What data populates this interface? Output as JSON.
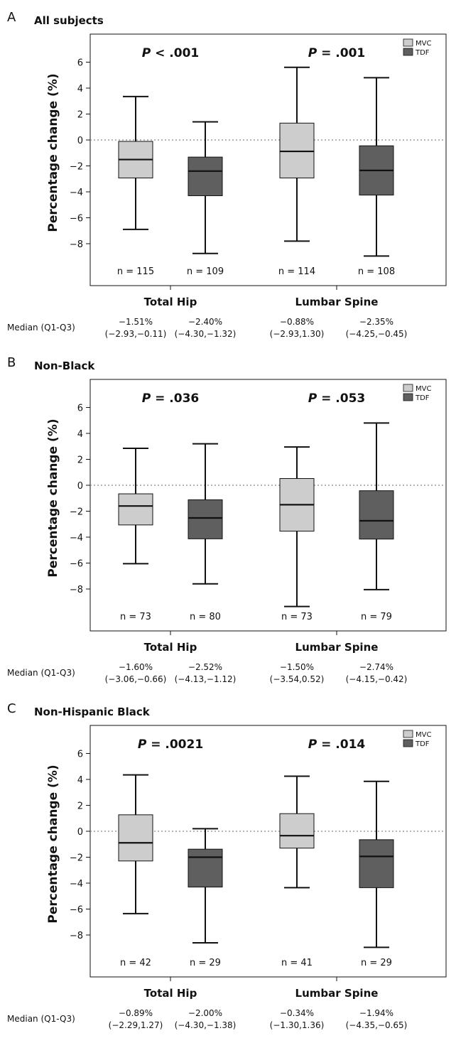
{
  "colors": {
    "MVC": "#cdcdcd",
    "TDF": "#5f5f5f",
    "axis": "#111111",
    "zeroline": "#888888"
  },
  "chart_data": [
    {
      "type": "box",
      "panel_letter": "A",
      "title": "All subjects",
      "ylabel": "Percentage change (%)",
      "ylim": [
        -10.3,
        7.9
      ],
      "yticks": [
        6,
        4,
        2,
        0,
        -2,
        -4,
        -6,
        -8
      ],
      "ytick_labels": [
        "6",
        "4",
        "2",
        "0",
        "−2",
        "−4",
        "−6",
        "−8"
      ],
      "reference_line": 0,
      "legend": [
        "MVC",
        "TDF"
      ],
      "median_row_label": "Median (Q1-Q3)",
      "groups": [
        {
          "name": "Total Hip",
          "p_prefix": "P",
          "p_text": " < .001",
          "boxes": [
            {
              "series": "MVC",
              "min": -6.9,
              "q1": -2.93,
              "median": -1.51,
              "q3": -0.11,
              "max": 3.35,
              "n_label": "n = 115",
              "median_label": "−1.51%",
              "iqr_label": "(−2.93,−0.11)"
            },
            {
              "series": "TDF",
              "min": -8.75,
              "q1": -4.3,
              "median": -2.4,
              "q3": -1.32,
              "max": 1.4,
              "n_label": "n = 109",
              "median_label": "−2.40%",
              "iqr_label": "(−4.30,−1.32)"
            }
          ]
        },
        {
          "name": "Lumbar Spine",
          "p_prefix": "P",
          "p_text": " = .001",
          "boxes": [
            {
              "series": "MVC",
              "min": -7.8,
              "q1": -2.93,
              "median": -0.88,
              "q3": 1.3,
              "max": 5.6,
              "n_label": "n = 114",
              "median_label": "−0.88%",
              "iqr_label": "(−2.93,1.30)"
            },
            {
              "series": "TDF",
              "min": -8.95,
              "q1": -4.25,
              "median": -2.35,
              "q3": -0.45,
              "max": 4.8,
              "n_label": "n = 108",
              "median_label": "−2.35%",
              "iqr_label": "(−4.25,−0.45)"
            }
          ]
        }
      ]
    },
    {
      "type": "box",
      "panel_letter": "B",
      "title": "Non-Black",
      "ylabel": "Percentage change (%)",
      "ylim": [
        -10.3,
        7.9
      ],
      "yticks": [
        6,
        4,
        2,
        0,
        -2,
        -4,
        -6,
        -8
      ],
      "ytick_labels": [
        "6",
        "4",
        "2",
        "0",
        "−2",
        "−4",
        "−6",
        "−8"
      ],
      "reference_line": 0,
      "legend": [
        "MVC",
        "TDF"
      ],
      "median_row_label": "Median (Q1-Q3)",
      "groups": [
        {
          "name": "Total Hip",
          "p_prefix": "P",
          "p_text": " = .036",
          "boxes": [
            {
              "series": "MVC",
              "min": -6.05,
              "q1": -3.06,
              "median": -1.6,
              "q3": -0.66,
              "max": 2.85,
              "n_label": "n = 73",
              "median_label": "−1.60%",
              "iqr_label": "(−3.06,−0.66)"
            },
            {
              "series": "TDF",
              "min": -7.6,
              "q1": -4.13,
              "median": -2.52,
              "q3": -1.12,
              "max": 3.2,
              "n_label": "n = 80",
              "median_label": "−2.52%",
              "iqr_label": "(−4.13,−1.12)"
            }
          ]
        },
        {
          "name": "Lumbar Spine",
          "p_prefix": "P",
          "p_text": " = .053",
          "boxes": [
            {
              "series": "MVC",
              "min": -9.35,
              "q1": -3.54,
              "median": -1.5,
              "q3": 0.52,
              "max": 2.95,
              "n_label": "n = 73",
              "median_label": "−1.50%",
              "iqr_label": "(−3.54,0.52)"
            },
            {
              "series": "TDF",
              "min": -8.05,
              "q1": -4.15,
              "median": -2.74,
              "q3": -0.42,
              "max": 4.8,
              "n_label": "n = 79",
              "median_label": "−2.74%",
              "iqr_label": "(−4.15,−0.42)"
            }
          ]
        }
      ]
    },
    {
      "type": "box",
      "panel_letter": "C",
      "title": "Non-Hispanic Black",
      "ylabel": "Percentage change (%)",
      "ylim": [
        -10.3,
        7.9
      ],
      "yticks": [
        6,
        4,
        2,
        0,
        -2,
        -4,
        -6,
        -8
      ],
      "ytick_labels": [
        "6",
        "4",
        "2",
        "0",
        "−2",
        "−4",
        "−6",
        "−8"
      ],
      "reference_line": 0,
      "legend": [
        "MVC",
        "TDF"
      ],
      "median_row_label": "Median (Q1-Q3)",
      "groups": [
        {
          "name": "Total Hip",
          "p_prefix": "P",
          "p_text": " = .0021",
          "boxes": [
            {
              "series": "MVC",
              "min": -6.35,
              "q1": -2.29,
              "median": -0.89,
              "q3": 1.27,
              "max": 4.35,
              "n_label": "n = 42",
              "median_label": "−0.89%",
              "iqr_label": "(−2.29,1.27)"
            },
            {
              "series": "TDF",
              "min": -8.6,
              "q1": -4.3,
              "median": -2.0,
              "q3": -1.38,
              "max": 0.2,
              "n_label": "n = 29",
              "median_label": "−2.00%",
              "iqr_label": "(−4.30,−1.38)"
            }
          ]
        },
        {
          "name": "Lumbar Spine",
          "p_prefix": "P",
          "p_text": " = .014",
          "boxes": [
            {
              "series": "MVC",
              "min": -4.35,
              "q1": -1.3,
              "median": -0.34,
              "q3": 1.36,
              "max": 4.25,
              "n_label": "n = 41",
              "median_label": "−0.34%",
              "iqr_label": "(−1.30,1.36)"
            },
            {
              "series": "TDF",
              "min": -8.95,
              "q1": -4.35,
              "median": -1.94,
              "q3": -0.65,
              "max": 3.85,
              "n_label": "n = 29",
              "median_label": "−1.94%",
              "iqr_label": "(−4.35,−0.65)"
            }
          ]
        }
      ]
    }
  ]
}
